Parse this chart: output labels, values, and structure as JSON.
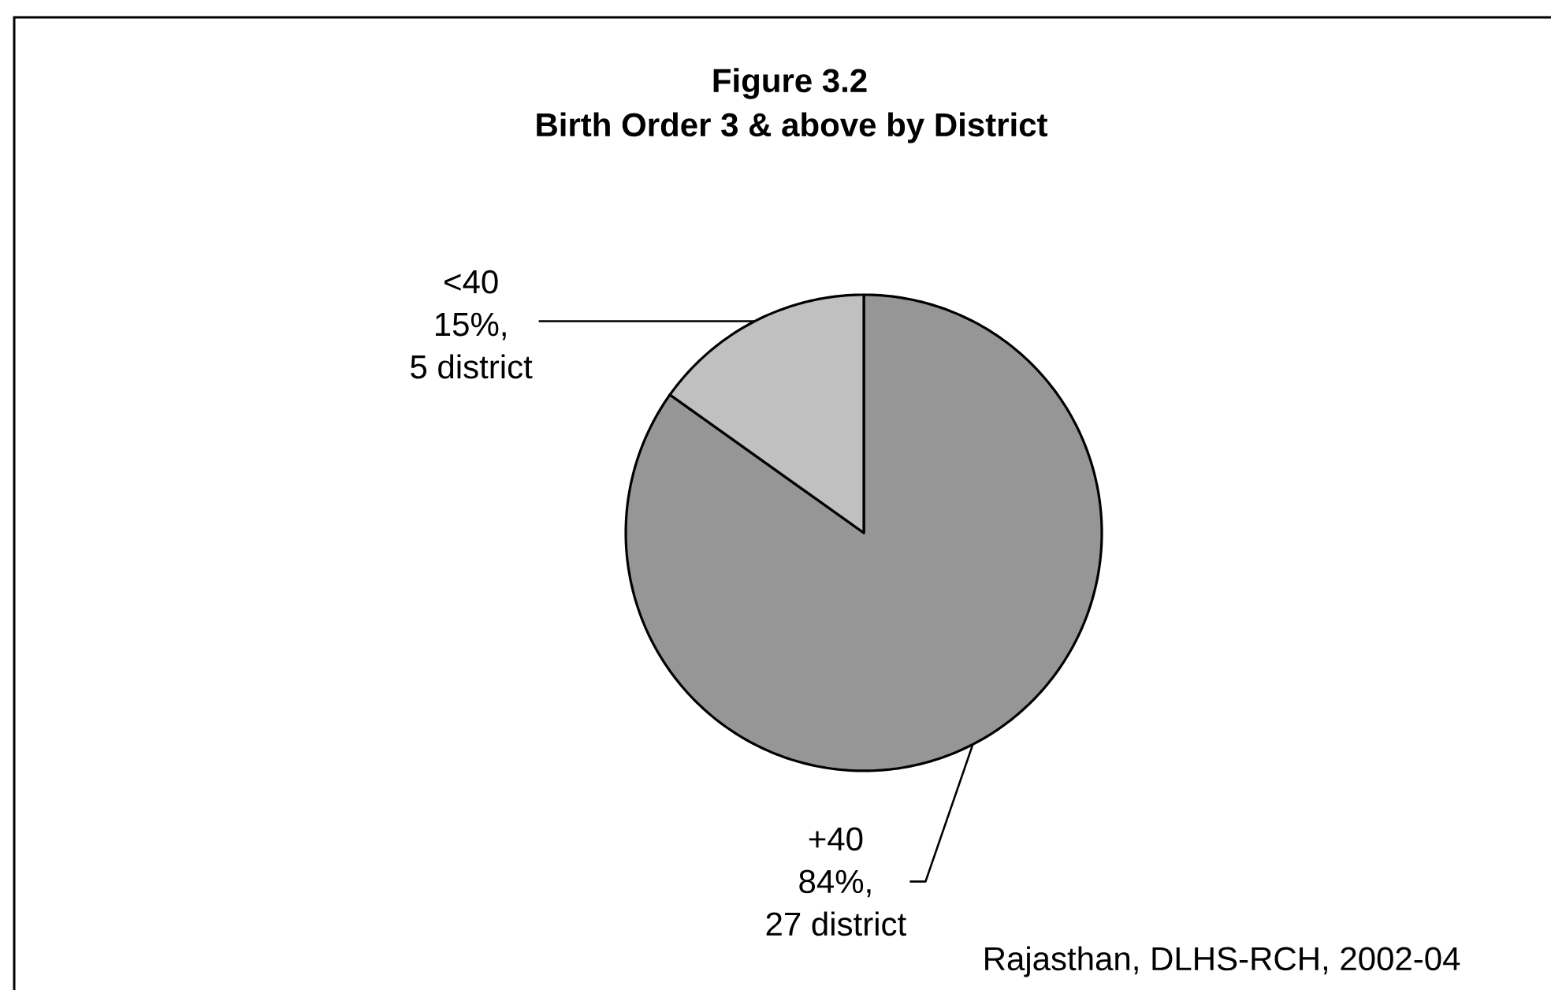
{
  "chart_data": {
    "type": "pie",
    "title": "Figure 3.2",
    "subtitle": "Birth Order 3 & above by District",
    "categories": [
      "+40",
      "<40"
    ],
    "values": [
      84,
      15
    ],
    "colors": [
      "#969696",
      "#c0c0c0"
    ],
    "value_labels": [
      "84%, 27 district",
      "15%, 5 district"
    ],
    "annotations": [
      "Rajasthan, DLHS-RCH, 2002-04"
    ]
  }
}
